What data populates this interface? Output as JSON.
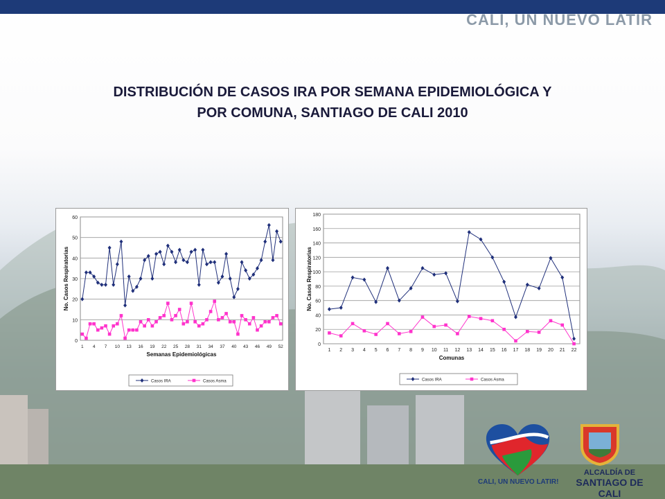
{
  "brand": "CALI, UN NUEVO LATIR",
  "title": {
    "line1": "DISTRIBUCIÓN DE CASOS IRA POR SEMANA EPIDEMIOLÓGICA Y",
    "line2": "POR COMUNA, SANTIAGO DE CALI 2010"
  },
  "logos": {
    "heart_caption": "CALI, UN NUEVO LATIR!",
    "alcaldia_line1": "ALCALDÍA DE",
    "alcaldia_line2": "SANTIAGO DE CALI"
  },
  "colors": {
    "ira": "#1f2f7a",
    "asma": "#ff33cc",
    "topbar": "#1d3a78"
  },
  "chart_data": [
    {
      "type": "line",
      "title": "",
      "xlabel": "Semanas Epidemiológicas",
      "ylabel": "No. Casos Respiratorias",
      "ylim": [
        0,
        60
      ],
      "yticks": [
        0,
        10,
        20,
        30,
        40,
        50,
        60
      ],
      "x": [
        1,
        2,
        3,
        4,
        5,
        6,
        7,
        8,
        9,
        10,
        11,
        12,
        13,
        14,
        15,
        16,
        17,
        18,
        19,
        20,
        21,
        22,
        23,
        24,
        25,
        26,
        27,
        28,
        29,
        30,
        31,
        32,
        33,
        34,
        35,
        36,
        37,
        38,
        39,
        40,
        41,
        42,
        43,
        44,
        45,
        46,
        47,
        48,
        49,
        50,
        51,
        52
      ],
      "xticklabels": [
        "1",
        "4",
        "7",
        "10",
        "13",
        "16",
        "19",
        "22",
        "25",
        "28",
        "31",
        "34",
        "37",
        "40",
        "43",
        "46",
        "49",
        "52"
      ],
      "series": [
        {
          "name": "Casos IRA",
          "values": [
            20,
            33,
            33,
            31,
            28,
            27,
            27,
            45,
            27,
            37,
            48,
            17,
            31,
            24,
            26,
            30,
            39,
            41,
            30,
            42,
            43,
            37,
            46,
            43,
            38,
            44,
            39,
            38,
            43,
            44,
            27,
            44,
            37,
            38,
            38,
            28,
            31,
            42,
            30,
            21,
            25,
            38,
            34,
            30,
            32,
            35,
            39,
            48,
            56,
            39,
            53,
            48
          ]
        },
        {
          "name": "Casos Asma",
          "values": [
            3,
            1,
            8,
            8,
            5,
            6,
            7,
            3,
            7,
            8,
            12,
            1,
            5,
            5,
            5,
            9,
            7,
            10,
            7,
            9,
            11,
            12,
            18,
            10,
            12,
            15,
            8,
            9,
            18,
            9,
            7,
            8,
            10,
            14,
            19,
            10,
            11,
            13,
            9,
            9,
            3,
            12,
            10,
            8,
            11,
            5,
            7,
            9,
            9,
            11,
            12,
            8
          ]
        }
      ]
    },
    {
      "type": "line",
      "title": "",
      "xlabel": "Comunas",
      "ylabel": "No. Casos Respiratorias",
      "ylim": [
        0,
        180
      ],
      "yticks": [
        0,
        20,
        40,
        60,
        80,
        100,
        120,
        140,
        160,
        180
      ],
      "x": [
        1,
        2,
        3,
        4,
        5,
        6,
        7,
        8,
        9,
        10,
        11,
        12,
        13,
        14,
        15,
        16,
        17,
        18,
        19,
        20,
        21,
        22
      ],
      "xticklabels": [
        "1",
        "2",
        "3",
        "4",
        "5",
        "6",
        "7",
        "8",
        "9",
        "10",
        "11",
        "12",
        "13",
        "14",
        "15",
        "16",
        "17",
        "18",
        "19",
        "20",
        "21",
        "22"
      ],
      "series": [
        {
          "name": "Casos IRA",
          "values": [
            48,
            50,
            92,
            89,
            58,
            105,
            60,
            77,
            105,
            96,
            98,
            59,
            155,
            145,
            120,
            86,
            37,
            82,
            77,
            119,
            92,
            7
          ]
        },
        {
          "name": "Casos Asma",
          "values": [
            15,
            11,
            28,
            18,
            13,
            28,
            14,
            17,
            37,
            24,
            26,
            14,
            38,
            35,
            32,
            20,
            4,
            17,
            16,
            32,
            26,
            0
          ]
        }
      ]
    }
  ]
}
